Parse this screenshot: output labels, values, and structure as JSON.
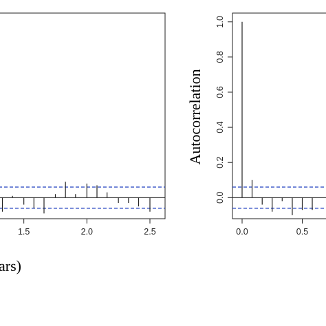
{
  "chart_data": [
    {
      "type": "bar",
      "subtype": "acf",
      "xlabel_fragment": "ars)",
      "ylabel": "",
      "x_ticks": [
        "1.5",
        "2.0",
        "2.5"
      ],
      "xlim": [
        1.3,
        2.62
      ],
      "ylim": [
        -0.12,
        1.05
      ],
      "confidence_band": [
        0.06,
        -0.06
      ],
      "band_color": "#1f3fbf",
      "x": [
        1.33,
        1.41,
        1.5,
        1.58,
        1.66,
        1.75,
        1.83,
        1.91,
        2.0,
        2.08,
        2.16,
        2.25,
        2.33,
        2.41,
        2.5
      ],
      "values": [
        -0.08,
        0.01,
        -0.04,
        -0.06,
        -0.09,
        0.02,
        0.09,
        0.02,
        0.08,
        0.07,
        0.03,
        -0.03,
        -0.03,
        -0.05,
        -0.08
      ]
    },
    {
      "type": "bar",
      "subtype": "acf",
      "ylabel": "Autocorrelation",
      "x_ticks": [
        "0.0",
        "0.5"
      ],
      "y_ticks": [
        "0.0",
        "0.2",
        "0.4",
        "0.6",
        "0.8",
        "1.0"
      ],
      "xlim": [
        -0.08,
        0.72
      ],
      "ylim": [
        -0.12,
        1.05
      ],
      "confidence_band": [
        0.06,
        -0.06
      ],
      "band_color": "#1f3fbf",
      "x": [
        0.0,
        0.083,
        0.167,
        0.25,
        0.333,
        0.417,
        0.5,
        0.583
      ],
      "values": [
        1.0,
        0.1,
        -0.04,
        -0.08,
        -0.02,
        -0.1,
        -0.07,
        -0.07
      ]
    }
  ]
}
